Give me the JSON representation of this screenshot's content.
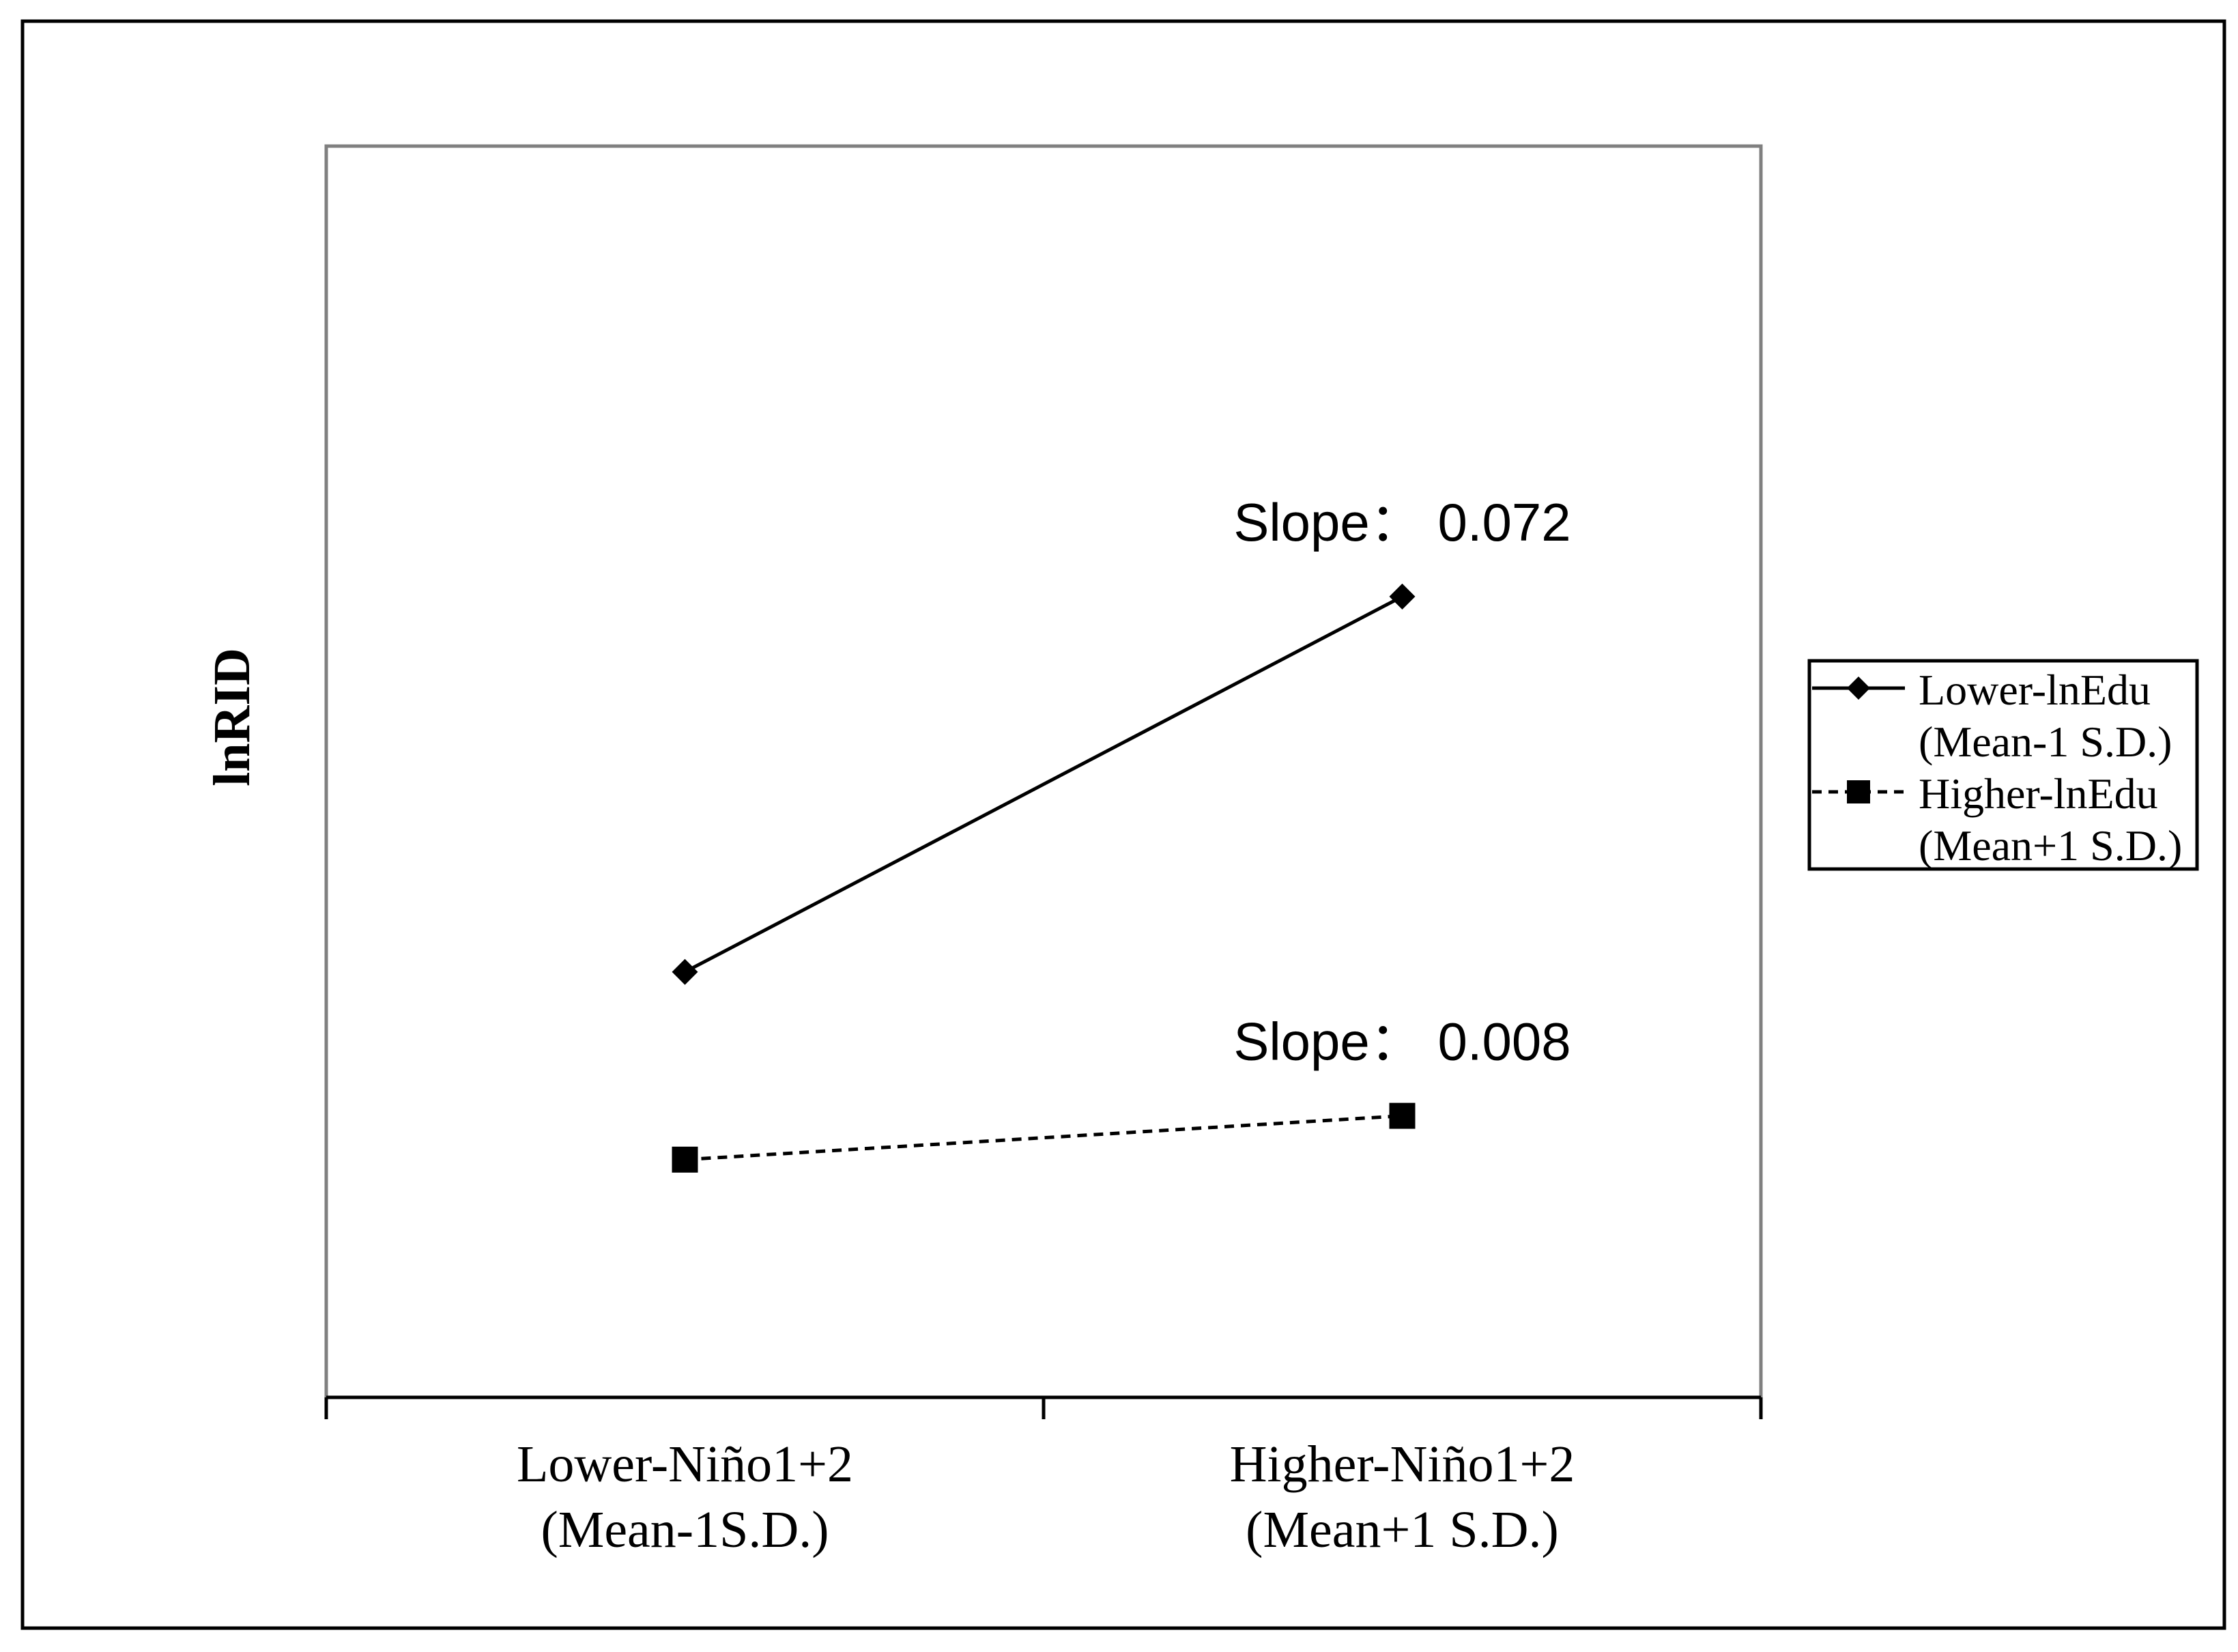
{
  "chart_data": {
    "type": "line",
    "categories": [
      "Lower-Niño1+2\n(Mean-1S.D.)",
      "Higher-Niño1+2\n(Mean+1 S.D.)"
    ],
    "ylabel": "lnRID",
    "xlabel": "",
    "y_ticks_shown": false,
    "grid": false,
    "legend_position": "right",
    "series": [
      {
        "name": "Lower-lnEdu\n(Mean-1 S.D.)",
        "values": [
          0.34,
          0.64
        ],
        "line_style": "solid",
        "marker": "diamond",
        "color": "#000000"
      },
      {
        "name": "Higher-lnEdu\n(Mean+1 S.D.)",
        "values": [
          0.19,
          0.225
        ],
        "line_style": "dashed",
        "marker": "square",
        "color": "#000000"
      }
    ],
    "annotations": [
      {
        "text": "Slope：  0.072",
        "series": 0
      },
      {
        "text": "Slope：  0.008",
        "series": 1
      }
    ],
    "ylim": [
      0,
      1
    ]
  }
}
